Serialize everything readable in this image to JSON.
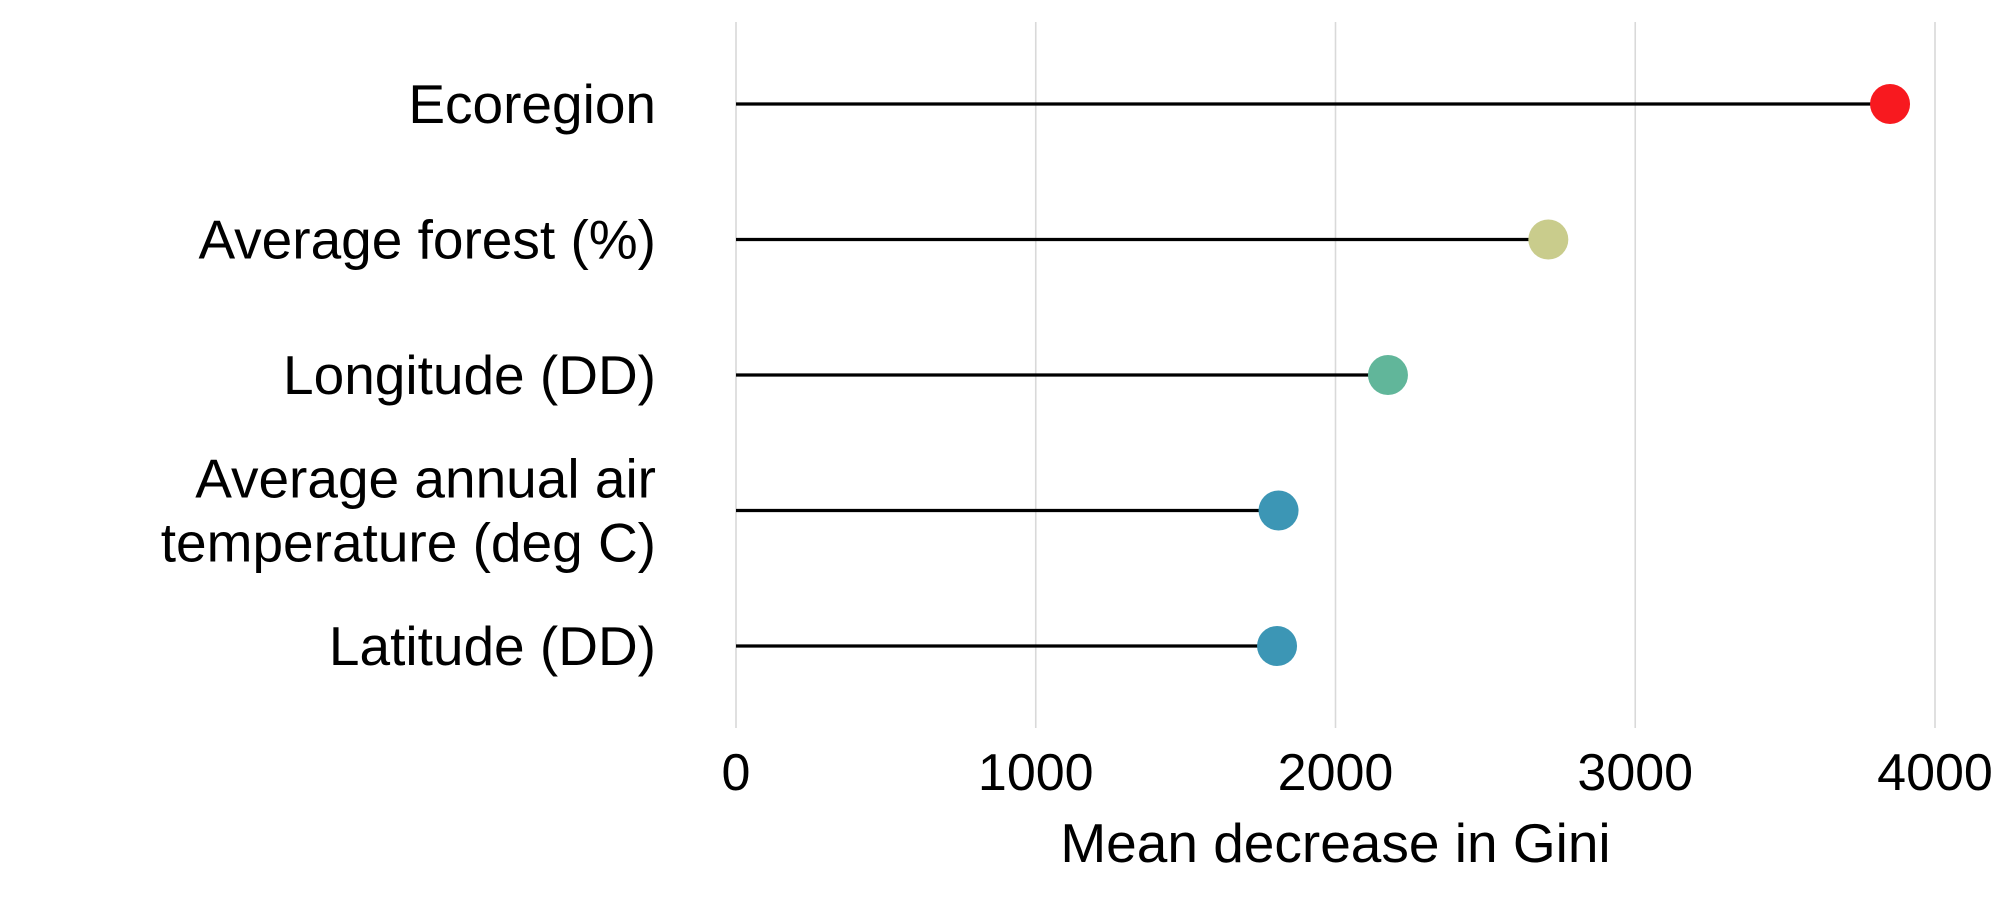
{
  "chart_data": {
    "type": "lollipop",
    "orientation": "horizontal",
    "categories": [
      "Ecoregion",
      "Average forest (%)",
      "Longitude (DD)",
      "Average annual air\ntemperature (deg C)",
      "Latitude (DD)"
    ],
    "values": [
      3850,
      2710,
      2175,
      1810,
      1805
    ],
    "point_colors": [
      "#f8191f",
      "#c9cc8c",
      "#61b69a",
      "#3c96b5",
      "#3c96b5"
    ],
    "stem_color": "#000000",
    "xlabel": "Mean decrease in Gini",
    "ylabel": "",
    "xlim": [
      0,
      4000
    ],
    "xticks": [
      0,
      1000,
      2000,
      3000,
      4000
    ],
    "grid": "vertical",
    "legend": "none"
  }
}
